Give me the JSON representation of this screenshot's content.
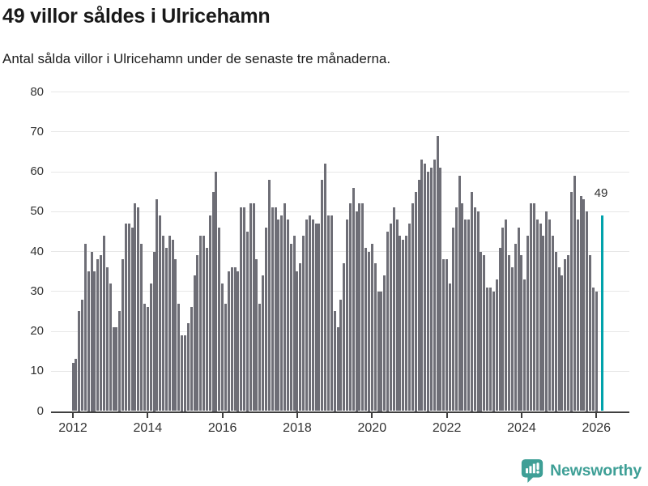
{
  "header": {
    "title": "49 villor såldes i Ulricehamn",
    "subtitle": "Antal sålda villor i Ulricehamn under de senaste tre månaderna."
  },
  "chart_data": {
    "type": "bar",
    "title": "49 villor såldes i Ulricehamn",
    "subtitle": "Antal sålda villor i Ulricehamn under de senaste tre månaderna.",
    "x_unit": "month",
    "x_start": "2012-01",
    "ylim": [
      0,
      80
    ],
    "grid": true,
    "ytick_labels": [
      "0",
      "10",
      "20",
      "30",
      "40",
      "50",
      "60",
      "70",
      "80"
    ],
    "xtick_years": [
      "2012",
      "2014",
      "2016",
      "2018",
      "2020",
      "2022",
      "2024",
      "2026"
    ],
    "values": [
      12,
      13,
      25,
      28,
      42,
      35,
      40,
      35,
      38,
      39,
      44,
      36,
      32,
      21,
      21,
      25,
      38,
      47,
      47,
      46,
      52,
      51,
      42,
      27,
      26,
      32,
      40,
      53,
      49,
      44,
      41,
      44,
      43,
      38,
      27,
      19,
      19,
      22,
      26,
      34,
      39,
      44,
      44,
      41,
      49,
      55,
      60,
      46,
      32,
      27,
      35,
      36,
      36,
      35,
      51,
      51,
      45,
      52,
      52,
      38,
      27,
      34,
      46,
      58,
      51,
      51,
      48,
      49,
      52,
      48,
      42,
      44,
      35,
      37,
      44,
      48,
      49,
      48,
      47,
      47,
      58,
      62,
      49,
      49,
      25,
      21,
      28,
      37,
      48,
      52,
      56,
      50,
      52,
      52,
      41,
      40,
      42,
      37,
      30,
      30,
      34,
      45,
      47,
      51,
      48,
      44,
      43,
      44,
      47,
      52,
      55,
      58,
      63,
      62,
      60,
      61,
      63,
      69,
      61,
      38,
      38,
      32,
      46,
      51,
      59,
      52,
      48,
      48,
      55,
      51,
      50,
      40,
      39,
      31,
      31,
      30,
      33,
      41,
      46,
      48,
      39,
      36,
      42,
      46,
      39,
      33,
      44,
      52,
      52,
      48,
      47,
      44,
      50,
      48,
      44,
      40,
      36,
      34,
      38,
      39,
      55,
      59,
      48,
      54,
      53,
      50,
      39,
      31,
      30,
      null,
      49
    ],
    "highlight": {
      "index": 170,
      "value": 49,
      "label": "49"
    },
    "colors": {
      "bar": "#6e6e76",
      "highlight": "#00a2ab",
      "grid": "#e7e7e7",
      "axis": "#3f3f3f",
      "tick_label": "#333333"
    }
  },
  "annotation": {
    "label": "49"
  },
  "footer": {
    "brand": "Newsworthy",
    "brand_color": "#3e9f96",
    "logo_icon": "newsworthy-speech-bubble-barchart-icon"
  }
}
